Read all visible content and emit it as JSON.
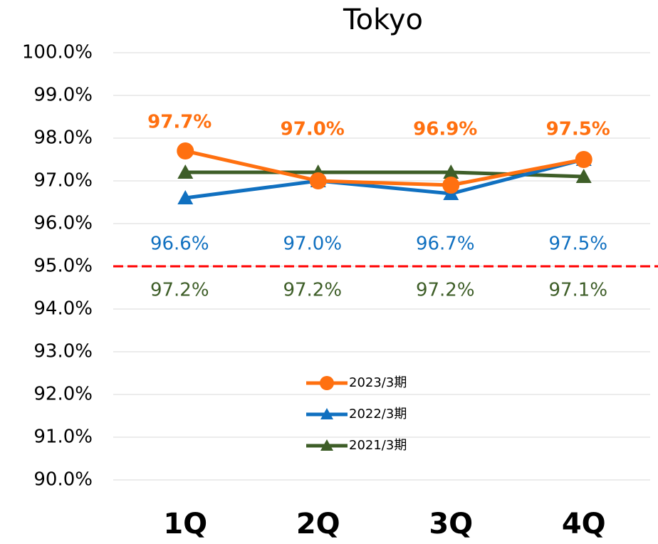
{
  "chart_data": {
    "type": "line",
    "title": "Tokyo",
    "categories": [
      "1Q",
      "2Q",
      "3Q",
      "4Q"
    ],
    "series": [
      {
        "name": "2023/3期",
        "color": "#ff7010",
        "marker": "circle",
        "values": [
          97.7,
          97.0,
          96.9,
          97.5
        ],
        "value_labels": [
          "97.7%",
          "97.0%",
          "96.9%",
          "97.5%"
        ]
      },
      {
        "name": "2022/3期",
        "color": "#1070c0",
        "marker": "triangle",
        "values": [
          96.6,
          97.0,
          96.7,
          97.5
        ],
        "value_labels": [
          "96.6%",
          "97.0%",
          "96.7%",
          "97.5%"
        ]
      },
      {
        "name": "2021/3期",
        "color": "#3e5e28",
        "marker": "triangle",
        "values": [
          97.2,
          97.2,
          97.2,
          97.1
        ],
        "value_labels": [
          "97.2%",
          "97.2%",
          "97.2%",
          "97.1%"
        ]
      }
    ],
    "reference_line": {
      "value": 95.0,
      "color": "#ff0000"
    },
    "ylim": [
      90,
      100
    ],
    "yticks": [
      {
        "value": 90,
        "label": "90.0%"
      },
      {
        "value": 91,
        "label": "91.0%"
      },
      {
        "value": 92,
        "label": "92.0%"
      },
      {
        "value": 93,
        "label": "93.0%"
      },
      {
        "value": 94,
        "label": "94.0%"
      },
      {
        "value": 95,
        "label": "95.0%"
      },
      {
        "value": 96,
        "label": "96.0%"
      },
      {
        "value": 97,
        "label": "97.0%"
      },
      {
        "value": 98,
        "label": "98.0%"
      },
      {
        "value": 99,
        "label": "99.0%"
      },
      {
        "value": 100,
        "label": "100.0%"
      }
    ],
    "grid": true
  }
}
